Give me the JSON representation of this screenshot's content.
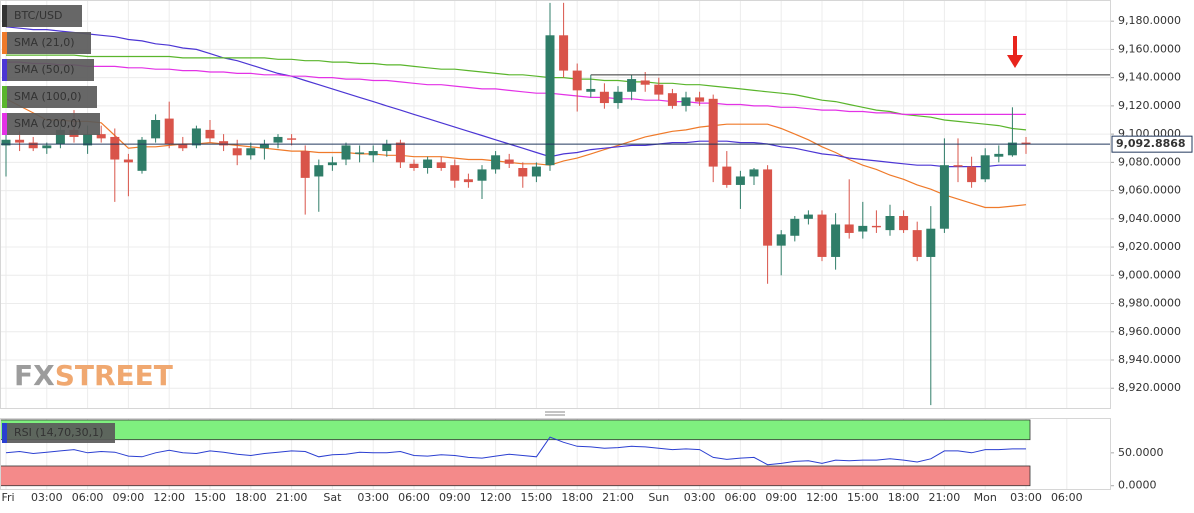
{
  "chart_data": [
    {
      "type": "candlestick",
      "title": "BTC/USD",
      "categories": [
        "Fri",
        null,
        null,
        "03:00",
        null,
        null,
        "06:00",
        null,
        null,
        "09:00",
        null,
        null,
        "12:00",
        null,
        null,
        "15:00",
        null,
        null,
        "18:00",
        null,
        null,
        "21:00",
        null,
        null,
        "Sat",
        null,
        null,
        "03:00",
        null,
        null,
        "06:00",
        null,
        null,
        "09:00",
        null,
        null,
        "12:00",
        null,
        null,
        "15:00",
        null,
        null,
        "18:00",
        null,
        null,
        "21:00",
        null,
        null,
        "Sun",
        null,
        null,
        "03:00",
        null,
        null,
        "06:00",
        null,
        null,
        "09:00",
        null,
        null,
        "12:00",
        null,
        null,
        "15:00",
        null,
        null,
        "18:00",
        null,
        null,
        "21:00",
        null,
        null,
        "Mon",
        null,
        null,
        "03:00",
        null,
        null,
        "06:00"
      ],
      "open": [
        9092,
        9096,
        9094,
        9090,
        9093,
        9103,
        9092,
        9100,
        9098,
        9082,
        9074,
        9097,
        9111,
        9093,
        9092,
        9103,
        9095,
        9090,
        9085,
        9090,
        9094,
        9097,
        9088,
        9070,
        9078,
        9082,
        9086,
        9085,
        9088,
        9094,
        9079,
        9076,
        9080,
        9078,
        9068,
        9067,
        9075,
        9082,
        9076,
        9070,
        9078,
        9170,
        9145,
        9130,
        9130,
        9122,
        9130,
        9138,
        9135,
        9129,
        9120,
        9126,
        9125,
        9077,
        9064,
        9070,
        9075,
        9021,
        9028,
        9040,
        9043,
        9013,
        9036,
        9031,
        9035,
        9032,
        9042,
        9032,
        9013,
        9033,
        9078,
        9077,
        9068,
        9084,
        9085,
        9094,
        null,
        null,
        null
      ],
      "high": [
        9108,
        9102,
        9098,
        9094,
        9106,
        9117,
        9106,
        9106,
        9104,
        9086,
        9098,
        9114,
        9123,
        9098,
        9106,
        9110,
        9100,
        9096,
        9094,
        9096,
        9100,
        9100,
        9092,
        9082,
        9084,
        9094,
        9092,
        9092,
        9096,
        9096,
        9082,
        9084,
        9084,
        9082,
        9072,
        9078,
        9088,
        9086,
        9080,
        9080,
        9193,
        9193,
        9150,
        9142,
        9136,
        9134,
        9142,
        9144,
        9140,
        9132,
        9130,
        9130,
        9128,
        9088,
        9074,
        9076,
        9078,
        9032,
        9042,
        9046,
        9046,
        9044,
        9068,
        9052,
        9046,
        9050,
        9046,
        9038,
        9049,
        9097,
        9097,
        9084,
        9090,
        9092,
        9119,
        9098,
        null,
        null,
        null
      ],
      "low": [
        9070,
        9088,
        9088,
        9086,
        9090,
        9094,
        9086,
        9094,
        9052,
        9056,
        9072,
        9094,
        9090,
        9088,
        9090,
        9094,
        9088,
        9078,
        9082,
        9082,
        9090,
        9092,
        9043,
        9045,
        9074,
        9078,
        9080,
        9080,
        9084,
        9076,
        9074,
        9072,
        9074,
        9062,
        9062,
        9054,
        9072,
        9076,
        9062,
        9066,
        9074,
        9140,
        9116,
        9126,
        9118,
        9118,
        9124,
        9130,
        9124,
        9118,
        9116,
        9120,
        9066,
        9062,
        9047,
        9064,
        8994,
        9000,
        9024,
        9036,
        9010,
        9004,
        9026,
        9026,
        9030,
        9028,
        9030,
        9010,
        8908,
        9030,
        9066,
        9062,
        9066,
        9080,
        9084,
        9086,
        null,
        null,
        null
      ],
      "close": [
        9096,
        9094,
        9090,
        9092,
        9103,
        9098,
        9100,
        9097,
        9082,
        9080,
        9096,
        9110,
        9093,
        9090,
        9104,
        9097,
        9092,
        9085,
        9090,
        9093,
        9098,
        9096,
        9069,
        9078,
        9080,
        9092,
        9087,
        9088,
        9093,
        9080,
        9076,
        9082,
        9076,
        9067,
        9066,
        9075,
        9085,
        9079,
        9070,
        9077,
        9170,
        9145,
        9131,
        9132,
        9122,
        9130,
        9139,
        9135,
        9128,
        9120,
        9126,
        9123,
        9077,
        9064,
        9070,
        9075,
        9021,
        9029,
        9040,
        9043,
        9013,
        9036,
        9030,
        9035,
        9034,
        9042,
        9032,
        9013,
        9033,
        9078,
        9077,
        9066,
        9085,
        9086,
        9094,
        9093,
        null,
        null,
        null
      ],
      "up_color": "#2f7d68",
      "down_color": "#d9544a",
      "series": [
        {
          "name": "SMA (21,0)",
          "color": "#ef7a2a",
          "values": [
            9125,
            9120,
            9115,
            9110,
            9110,
            9109,
            9109,
            9108,
            9099,
            9090,
            9091,
            9091,
            9092,
            9093,
            9093,
            9094,
            9093,
            9092,
            9091,
            9090,
            9089,
            9088,
            9088,
            9087,
            9087,
            9087,
            9086,
            9086,
            9085,
            9085,
            9084,
            9084,
            9084,
            9083,
            9082,
            9082,
            9081,
            9080,
            9079,
            9079,
            9078,
            9081,
            9083,
            9086,
            9089,
            9092,
            9095,
            9098,
            9100,
            9102,
            9103,
            9105,
            9106,
            9107,
            9107,
            9107,
            9107,
            9104,
            9100,
            9096,
            9091,
            9087,
            9082,
            9078,
            9075,
            9071,
            9068,
            9064,
            9061,
            9057,
            9054,
            9051,
            9048,
            9048,
            9049,
            9050,
            null,
            null,
            null
          ]
        },
        {
          "name": "SMA (50,0)",
          "color": "#4c36d4",
          "values": [
            9176,
            9175,
            9174,
            9174,
            9173,
            9172,
            9171,
            9170,
            9169,
            9167,
            9166,
            9164,
            9163,
            9161,
            9160,
            9157,
            9154,
            9152,
            9149,
            9146,
            9143,
            9141,
            9138,
            9135,
            9132,
            9129,
            9126,
            9123,
            9120,
            9117,
            9114,
            9111,
            9108,
            9105,
            9102,
            9099,
            9096,
            9093,
            9090,
            9087,
            9084,
            9086,
            9087,
            9089,
            9090,
            9091,
            9092,
            9092,
            9093,
            9094,
            9094,
            9095,
            9095,
            9095,
            9094,
            9094,
            9093,
            9091,
            9090,
            9088,
            9086,
            9085,
            9083,
            9082,
            9081,
            9080,
            9079,
            9078,
            9078,
            9077,
            9077,
            9077,
            9077,
            9078,
            9078,
            9078,
            null,
            null,
            null
          ]
        },
        {
          "name": "SMA (100,0)",
          "color": "#5ab52c",
          "values": [
            9156,
            9156,
            9156,
            9156,
            9156,
            9156,
            9155,
            9155,
            9155,
            9155,
            9155,
            9155,
            9155,
            9154,
            9154,
            9154,
            9154,
            9154,
            9154,
            9154,
            9153,
            9153,
            9152,
            9152,
            9151,
            9151,
            9150,
            9150,
            9149,
            9149,
            9148,
            9147,
            9146,
            9146,
            9145,
            9144,
            9143,
            9142,
            9142,
            9141,
            9140,
            9140,
            9139,
            9139,
            9138,
            9138,
            9137,
            9137,
            9136,
            9136,
            9135,
            9135,
            9134,
            9133,
            9132,
            9131,
            9130,
            9129,
            9128,
            9126,
            9124,
            9123,
            9121,
            9119,
            9117,
            9116,
            9114,
            9113,
            9112,
            9110,
            9109,
            9108,
            9107,
            9106,
            9104,
            9103,
            null,
            null,
            null
          ]
        },
        {
          "name": "SMA (200,0)",
          "color": "#e332e6",
          "values": [
            9151,
            9151,
            9150,
            9150,
            9149,
            9149,
            9148,
            9148,
            9148,
            9147,
            9147,
            9146,
            9146,
            9145,
            9145,
            9144,
            9144,
            9143,
            9143,
            9142,
            9142,
            9141,
            9141,
            9140,
            9140,
            9139,
            9139,
            9138,
            9138,
            9137,
            9136,
            9135,
            9135,
            9134,
            9133,
            9132,
            9132,
            9131,
            9130,
            9129,
            9129,
            9128,
            9127,
            9126,
            9126,
            9125,
            9125,
            9124,
            9124,
            9123,
            9123,
            9122,
            9122,
            9121,
            9121,
            9120,
            9120,
            9119,
            9119,
            9118,
            9117,
            9117,
            9116,
            9116,
            9115,
            9115,
            9114,
            9114,
            9114,
            9114,
            9114,
            9114,
            9114,
            9114,
            9114,
            9114,
            null,
            null,
            null
          ]
        }
      ],
      "ylim": [
        8906,
        9195
      ],
      "yticks": [
        {
          "value": 8920,
          "label": "8,920.0000"
        },
        {
          "value": 8940,
          "label": "8,940.0000"
        },
        {
          "value": 8960,
          "label": "8,960.0000"
        },
        {
          "value": 8980,
          "label": "8,980.0000"
        },
        {
          "value": 9000,
          "label": "9,000.0000"
        },
        {
          "value": 9020,
          "label": "9,020.0000"
        },
        {
          "value": 9040,
          "label": "9,040.0000"
        },
        {
          "value": 9060,
          "label": "9,060.0000"
        },
        {
          "value": 9080,
          "label": "9,080.0000"
        },
        {
          "value": 9100,
          "label": "9,100.0000"
        },
        {
          "value": 9120,
          "label": "9,120.0000"
        },
        {
          "value": 9140,
          "label": "9,140.0000"
        },
        {
          "value": 9160,
          "label": "9,160.0000"
        },
        {
          "value": 9180,
          "label": "9,180.0000"
        }
      ],
      "grid": true,
      "last_price": {
        "value": 9092.8868,
        "label": "9,092.8868"
      },
      "resistance": 9142,
      "watermark": [
        "FX",
        "STREET"
      ]
    },
    {
      "type": "rsi",
      "title": "RSI (14,70,30,1)",
      "color": "#2b3fd1",
      "values": [
        50,
        52,
        49,
        51,
        53,
        55,
        50,
        52,
        51,
        45,
        44,
        50,
        54,
        50,
        49,
        53,
        51,
        48,
        46,
        49,
        51,
        53,
        52,
        44,
        47,
        48,
        51,
        50,
        50,
        52,
        46,
        45,
        47,
        46,
        43,
        42,
        45,
        48,
        46,
        44,
        74,
        66,
        60,
        59,
        57,
        58,
        60,
        59,
        57,
        55,
        56,
        55,
        43,
        40,
        42,
        43,
        32,
        34,
        37,
        38,
        34,
        39,
        38,
        39,
        39,
        41,
        39,
        36,
        41,
        53,
        53,
        50,
        55,
        55,
        56,
        56,
        null,
        null,
        null
      ],
      "ylim": [
        -5,
        103
      ],
      "yticks": [
        {
          "value": 0,
          "label": "0.0000"
        },
        {
          "value": 50,
          "label": "50.0000"
        }
      ],
      "overbought_band": [
        70,
        100
      ],
      "overbought_color": "#7ff07f",
      "oversold_band": [
        0,
        30
      ],
      "oversold_color": "#f48a8a"
    }
  ]
}
